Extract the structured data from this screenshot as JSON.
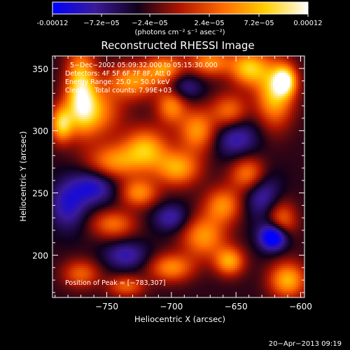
{
  "colorbar": {
    "ticks": [
      "-0.00012",
      "−7.2e−05",
      "−2.4e−05",
      "2.4e−05",
      "7.2e−05",
      "0.00012"
    ],
    "unit_label": "(photons cm⁻² s⁻¹ asec⁻²)",
    "colors": [
      "#0000ff",
      "#3a1a9a",
      "#10001a",
      "#b01500",
      "#ff6a00",
      "#ffd000",
      "#ffffff"
    ],
    "range": [
      -0.00012,
      0.00012
    ]
  },
  "chart_data": {
    "type": "heatmap",
    "title": "Reconstructed RHESSI Image",
    "xlabel": "Heliocentric X (arcsec)",
    "ylabel": "Heliocentric Y (arcsec)",
    "xlim": [
      -792,
      -597
    ],
    "ylim": [
      166,
      360
    ],
    "x_ticks": [
      -750,
      -700,
      -650,
      -600
    ],
    "x_tick_labels": [
      "−750",
      "−700",
      "−650",
      "−600"
    ],
    "y_ticks": [
      200,
      250,
      300,
      350
    ],
    "y_tick_labels": [
      "200",
      "250",
      "300",
      "350"
    ],
    "annotations": [
      "5−Dec−2002 05:09:32.000 to 05:15:30.000",
      "Detectors: 4F 5F 6F 7F 8F, Att 0",
      "Energy Range: 25.0 − 50.0 keV",
      "Clean     Total counts: 7.99E+03"
    ],
    "peak_label": "Position of Peak = [−783,307]",
    "peak": [
      -783,
      307
    ],
    "blobs": [
      {
        "x": -770,
        "y": 335,
        "sx": 8,
        "sy": 22,
        "amp": 1.0
      },
      {
        "x": -760,
        "y": 315,
        "sx": 14,
        "sy": 14,
        "amp": 0.75
      },
      {
        "x": -785,
        "y": 305,
        "sx": 6,
        "sy": 10,
        "amp": 0.9
      },
      {
        "x": -730,
        "y": 340,
        "sx": 14,
        "sy": 10,
        "amp": 0.75
      },
      {
        "x": -705,
        "y": 350,
        "sx": 10,
        "sy": 8,
        "amp": 0.7
      },
      {
        "x": -670,
        "y": 355,
        "sx": 12,
        "sy": 8,
        "amp": 0.7
      },
      {
        "x": -640,
        "y": 350,
        "sx": 10,
        "sy": 10,
        "amp": 0.9
      },
      {
        "x": -620,
        "y": 330,
        "sx": 10,
        "sy": 18,
        "amp": 0.95
      },
      {
        "x": -612,
        "y": 340,
        "sx": 6,
        "sy": 8,
        "amp": 1.0
      },
      {
        "x": -700,
        "y": 320,
        "sx": 8,
        "sy": 10,
        "amp": 0.7
      },
      {
        "x": -680,
        "y": 300,
        "sx": 10,
        "sy": 12,
        "amp": 0.75
      },
      {
        "x": -655,
        "y": 315,
        "sx": 10,
        "sy": 10,
        "amp": 0.65
      },
      {
        "x": -745,
        "y": 275,
        "sx": 14,
        "sy": 10,
        "amp": 0.7
      },
      {
        "x": -720,
        "y": 285,
        "sx": 12,
        "sy": 12,
        "amp": 0.85
      },
      {
        "x": -695,
        "y": 270,
        "sx": 12,
        "sy": 10,
        "amp": 0.8
      },
      {
        "x": -725,
        "y": 250,
        "sx": 10,
        "sy": 8,
        "amp": 0.7
      },
      {
        "x": -660,
        "y": 240,
        "sx": 10,
        "sy": 10,
        "amp": 0.7
      },
      {
        "x": -640,
        "y": 265,
        "sx": 10,
        "sy": 10,
        "amp": 0.75
      },
      {
        "x": -675,
        "y": 215,
        "sx": 12,
        "sy": 12,
        "amp": 0.75
      },
      {
        "x": -655,
        "y": 195,
        "sx": 8,
        "sy": 8,
        "amp": 0.8
      },
      {
        "x": -610,
        "y": 180,
        "sx": 10,
        "sy": 10,
        "amp": 0.85
      },
      {
        "x": -615,
        "y": 225,
        "sx": 8,
        "sy": 12,
        "amp": 0.75
      },
      {
        "x": -745,
        "y": 225,
        "sx": 12,
        "sy": 8,
        "amp": 0.6
      },
      {
        "x": -700,
        "y": 190,
        "sx": 12,
        "sy": 8,
        "amp": 0.7
      },
      {
        "x": -770,
        "y": 185,
        "sx": 10,
        "sy": 8,
        "amp": 0.55
      },
      {
        "x": -735,
        "y": 175,
        "sx": 10,
        "sy": 6,
        "amp": 0.55
      },
      {
        "x": -760,
        "y": 255,
        "sx": 12,
        "sy": 10,
        "amp": -0.55
      },
      {
        "x": -780,
        "y": 240,
        "sx": 10,
        "sy": 14,
        "amp": -0.5
      },
      {
        "x": -620,
        "y": 215,
        "sx": 8,
        "sy": 8,
        "amp": -1.2
      },
      {
        "x": -630,
        "y": 250,
        "sx": 10,
        "sy": 14,
        "amp": -0.5
      },
      {
        "x": -650,
        "y": 295,
        "sx": 12,
        "sy": 12,
        "amp": -0.5
      },
      {
        "x": -700,
        "y": 230,
        "sx": 10,
        "sy": 8,
        "amp": -0.45
      },
      {
        "x": -735,
        "y": 200,
        "sx": 12,
        "sy": 8,
        "amp": -0.45
      },
      {
        "x": -690,
        "y": 335,
        "sx": 10,
        "sy": 8,
        "amp": -0.4
      }
    ]
  },
  "footer": {
    "date": "20−Apr−2013 09:19"
  }
}
